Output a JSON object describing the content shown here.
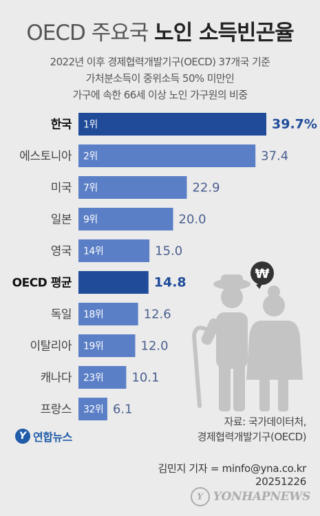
{
  "title_light": "OECD 주요국",
  "title_bold": "노인 소득빈곤율",
  "subtitle_lines": [
    "2022년 이후 경제협력개발기구(OECD) 37개국 기준",
    "가처분소득이 중위소득 50% 미만인",
    "가구에 속한 66세 이상 노인 가구원의 비중"
  ],
  "chart_data": {
    "type": "bar",
    "orientation": "horizontal",
    "title": "OECD 주요국 노인 소득빈곤율",
    "categories": [
      "한국",
      "에스토니아",
      "미국",
      "일본",
      "영국",
      "OECD 평균",
      "독일",
      "이탈리아",
      "캐나다",
      "프랑스"
    ],
    "ranks": [
      "1위",
      "2위",
      "7위",
      "9위",
      "14위",
      "",
      "18위",
      "19위",
      "23위",
      "32위"
    ],
    "values": [
      39.7,
      37.4,
      22.9,
      20.0,
      15.0,
      14.8,
      12.6,
      12.0,
      10.1,
      6.1
    ],
    "value_labels": [
      "39.7%",
      "37.4",
      "22.9",
      "20.0",
      "15.0",
      "14.8",
      "12.6",
      "12.0",
      "10.1",
      "6.1"
    ],
    "highlight": [
      "한국",
      "OECD 평균"
    ],
    "xlim": [
      0,
      39.7
    ],
    "colors": {
      "bar": "#5b7fc6",
      "highlight": "#1f4b99",
      "highlight_text": "#1f4b99",
      "value_text": "#4a5f8f"
    }
  },
  "illustration": {
    "name": "elderly-couple-icon",
    "badge_symbol": "₩",
    "color": "#c4c4c4"
  },
  "source_lines": [
    "자료: 국가데이터처,",
    "경제협력개발기구(OECD)"
  ],
  "logo_text": "연합뉴스",
  "credit_lines": [
    "김민지 기자 = minfo@yna.co.kr",
    "20251226"
  ],
  "watermark_text": "YONHAPNEWS"
}
